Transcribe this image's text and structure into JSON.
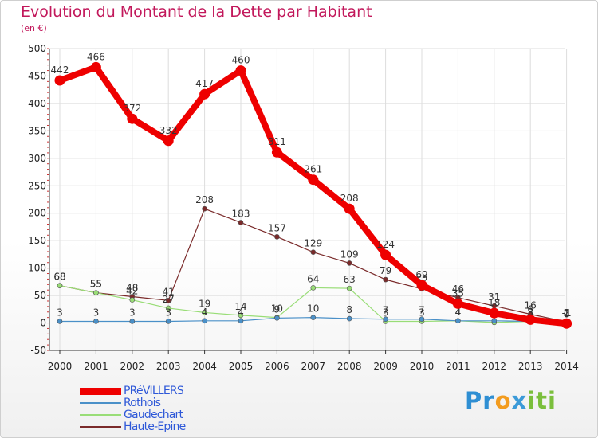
{
  "chart_data": {
    "type": "line",
    "title": "Evolution du Montant de la Dette par Habitant",
    "subtitle": "(en €)",
    "ylim": [
      -50,
      500
    ],
    "yticks": [
      -50,
      0,
      50,
      100,
      150,
      200,
      250,
      300,
      350,
      400,
      450,
      500
    ],
    "categories": [
      "2000",
      "2001",
      "2002",
      "2003",
      "2004",
      "2005",
      "2006",
      "2007",
      "2008",
      "2009",
      "2010",
      "2011",
      "2012",
      "2013",
      "2014"
    ],
    "series": [
      {
        "name": "Haute-Epine",
        "color": "#7a2a2a",
        "values": [
          68,
          55,
          48,
          41,
          208,
          183,
          157,
          129,
          109,
          79,
          62,
          46,
          31,
          16,
          2
        ],
        "labels": [
          "68",
          "55",
          "48",
          "41",
          "208",
          "183",
          "157",
          "129",
          "109",
          "79",
          "62",
          "46",
          "31",
          "16",
          "2"
        ]
      },
      {
        "name": "Gaudechart",
        "color": "#99dd77",
        "values": [
          68,
          55,
          42,
          27,
          19,
          14,
          10,
          64,
          63,
          3,
          3,
          4,
          1,
          3,
          0
        ],
        "labels": [
          "68",
          "55",
          "42",
          "27",
          "19",
          "14",
          "10",
          "64",
          "63",
          "3",
          "3",
          "4",
          "1",
          "3",
          "0"
        ]
      },
      {
        "name": "Rothois",
        "color": "#4a90c8",
        "values": [
          3,
          3,
          3,
          3,
          4,
          4,
          9,
          10,
          8,
          7,
          7,
          4,
          4,
          3,
          1
        ],
        "labels": [
          "3",
          "3",
          "3",
          "3",
          "4",
          "4",
          "9",
          "10",
          "8",
          "7",
          "7",
          "4",
          "4",
          "3",
          "1"
        ]
      },
      {
        "name": "PRéVILLERS",
        "color": "#ee0000",
        "values": [
          442,
          466,
          372,
          332,
          417,
          460,
          311,
          261,
          208,
          124,
          69,
          35,
          18,
          6,
          -1
        ],
        "labels": [
          "442",
          "466",
          "372",
          "332",
          "417",
          "460",
          "311",
          "261",
          "208",
          "124",
          "69",
          "35",
          "18",
          "6",
          "-1"
        ]
      }
    ],
    "legend": [
      "PRéVILLERS",
      "Rothois",
      "Gaudechart",
      "Haute-Epine"
    ]
  },
  "logo": {
    "part1": "Pr",
    "part2": "o",
    "part3": "x",
    "part4": "iti"
  }
}
